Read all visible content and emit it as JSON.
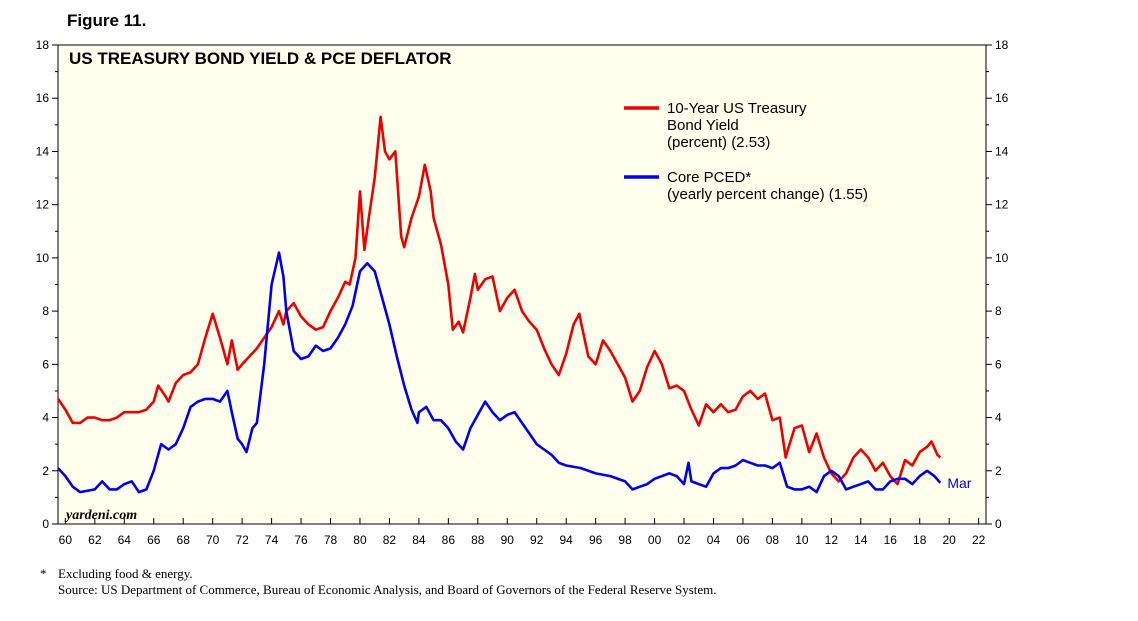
{
  "figure_label": "Figure 11.",
  "footnote": {
    "marker": "*",
    "note": "Excluding food & energy.",
    "source": "Source: US Department of Commerce, Bureau of Economic Analysis, and Board of Governors of the Federal Reserve System."
  },
  "colors": {
    "background": "#ffffee",
    "treasury": "#ee0000",
    "pced": "#0000ee",
    "text": "#000000"
  },
  "chart_data": {
    "type": "line",
    "title": "US TREASURY BOND YIELD & PCE DEFLATOR",
    "watermark": "yardeni.com",
    "ylim": [
      0,
      18
    ],
    "yticks": [
      0,
      2,
      4,
      6,
      8,
      10,
      12,
      14,
      16,
      18
    ],
    "xlim": [
      1959.5,
      2022.5
    ],
    "xtick_labels": [
      "60",
      "62",
      "64",
      "66",
      "68",
      "70",
      "72",
      "74",
      "76",
      "78",
      "80",
      "82",
      "84",
      "86",
      "88",
      "90",
      "92",
      "94",
      "96",
      "98",
      "00",
      "02",
      "04",
      "06",
      "08",
      "10",
      "12",
      "14",
      "16",
      "18",
      "20",
      "22"
    ],
    "xtick_years": [
      1960,
      1962,
      1964,
      1966,
      1968,
      1970,
      1972,
      1974,
      1976,
      1978,
      1980,
      1982,
      1984,
      1986,
      1988,
      1990,
      1992,
      1994,
      1996,
      1998,
      2000,
      2002,
      2004,
      2006,
      2008,
      2010,
      2012,
      2014,
      2016,
      2018,
      2020,
      2022
    ],
    "series": [
      {
        "name": "10-Year US Treasury Bond Yield (percent) (2.53)",
        "legend_lines": [
          "10-Year US Treasury",
          "Bond Yield",
          "(percent) (2.53)"
        ],
        "color": "#ee0000",
        "points": [
          [
            1959.5,
            4.7
          ],
          [
            1960,
            4.3
          ],
          [
            1960.5,
            3.8
          ],
          [
            1961,
            3.8
          ],
          [
            1961.5,
            4.0
          ],
          [
            1962,
            4.0
          ],
          [
            1962.5,
            3.9
          ],
          [
            1963,
            3.9
          ],
          [
            1963.5,
            4.0
          ],
          [
            1964,
            4.2
          ],
          [
            1965,
            4.2
          ],
          [
            1965.5,
            4.3
          ],
          [
            1966,
            4.6
          ],
          [
            1966.3,
            5.2
          ],
          [
            1966.8,
            4.8
          ],
          [
            1967,
            4.6
          ],
          [
            1967.5,
            5.3
          ],
          [
            1968,
            5.6
          ],
          [
            1968.5,
            5.7
          ],
          [
            1969,
            6.0
          ],
          [
            1969.5,
            7.0
          ],
          [
            1970,
            7.9
          ],
          [
            1970.5,
            7.0
          ],
          [
            1971,
            6.0
          ],
          [
            1971.3,
            6.9
          ],
          [
            1971.7,
            5.8
          ],
          [
            1972,
            6.0
          ],
          [
            1972.5,
            6.3
          ],
          [
            1973,
            6.6
          ],
          [
            1973.5,
            7.0
          ],
          [
            1974,
            7.4
          ],
          [
            1974.5,
            8.0
          ],
          [
            1974.8,
            7.5
          ],
          [
            1975,
            8.0
          ],
          [
            1975.5,
            8.3
          ],
          [
            1976,
            7.8
          ],
          [
            1976.5,
            7.5
          ],
          [
            1977,
            7.3
          ],
          [
            1977.5,
            7.4
          ],
          [
            1978,
            8.0
          ],
          [
            1978.5,
            8.5
          ],
          [
            1979,
            9.1
          ],
          [
            1979.3,
            9.0
          ],
          [
            1979.7,
            10.0
          ],
          [
            1980,
            12.5
          ],
          [
            1980.3,
            10.3
          ],
          [
            1980.6,
            11.5
          ],
          [
            1981,
            13.0
          ],
          [
            1981.4,
            15.3
          ],
          [
            1981.7,
            14.0
          ],
          [
            1982,
            13.7
          ],
          [
            1982.4,
            14.0
          ],
          [
            1982.8,
            10.8
          ],
          [
            1983,
            10.4
          ],
          [
            1983.5,
            11.5
          ],
          [
            1984,
            12.3
          ],
          [
            1984.4,
            13.5
          ],
          [
            1984.8,
            12.5
          ],
          [
            1985,
            11.5
          ],
          [
            1985.5,
            10.5
          ],
          [
            1986,
            9.0
          ],
          [
            1986.3,
            7.3
          ],
          [
            1986.7,
            7.6
          ],
          [
            1987,
            7.2
          ],
          [
            1987.5,
            8.5
          ],
          [
            1987.8,
            9.4
          ],
          [
            1988,
            8.8
          ],
          [
            1988.5,
            9.2
          ],
          [
            1989,
            9.3
          ],
          [
            1989.5,
            8.0
          ],
          [
            1990,
            8.5
          ],
          [
            1990.5,
            8.8
          ],
          [
            1991,
            8.0
          ],
          [
            1991.5,
            7.6
          ],
          [
            1992,
            7.3
          ],
          [
            1992.5,
            6.6
          ],
          [
            1993,
            6.0
          ],
          [
            1993.5,
            5.6
          ],
          [
            1994,
            6.4
          ],
          [
            1994.5,
            7.5
          ],
          [
            1994.9,
            7.9
          ],
          [
            1995,
            7.6
          ],
          [
            1995.5,
            6.3
          ],
          [
            1996,
            6.0
          ],
          [
            1996.5,
            6.9
          ],
          [
            1997,
            6.5
          ],
          [
            1997.5,
            6.0
          ],
          [
            1998,
            5.5
          ],
          [
            1998.5,
            4.6
          ],
          [
            1999,
            5.0
          ],
          [
            1999.5,
            5.9
          ],
          [
            2000,
            6.5
          ],
          [
            2000.5,
            6.0
          ],
          [
            2001,
            5.1
          ],
          [
            2001.5,
            5.2
          ],
          [
            2002,
            5.0
          ],
          [
            2002.5,
            4.3
          ],
          [
            2003,
            3.7
          ],
          [
            2003.5,
            4.5
          ],
          [
            2004,
            4.2
          ],
          [
            2004.5,
            4.5
          ],
          [
            2005,
            4.2
          ],
          [
            2005.5,
            4.3
          ],
          [
            2006,
            4.8
          ],
          [
            2006.5,
            5.0
          ],
          [
            2007,
            4.7
          ],
          [
            2007.5,
            4.9
          ],
          [
            2008,
            3.9
          ],
          [
            2008.5,
            4.0
          ],
          [
            2008.9,
            2.5
          ],
          [
            2009,
            2.7
          ],
          [
            2009.5,
            3.6
          ],
          [
            2010,
            3.7
          ],
          [
            2010.5,
            2.7
          ],
          [
            2011,
            3.4
          ],
          [
            2011.5,
            2.5
          ],
          [
            2012,
            1.9
          ],
          [
            2012.5,
            1.6
          ],
          [
            2013,
            1.9
          ],
          [
            2013.5,
            2.5
          ],
          [
            2014,
            2.8
          ],
          [
            2014.5,
            2.5
          ],
          [
            2015,
            2.0
          ],
          [
            2015.5,
            2.3
          ],
          [
            2016,
            1.8
          ],
          [
            2016.5,
            1.5
          ],
          [
            2017,
            2.4
          ],
          [
            2017.5,
            2.2
          ],
          [
            2018,
            2.7
          ],
          [
            2018.5,
            2.9
          ],
          [
            2018.8,
            3.1
          ],
          [
            2019.2,
            2.6
          ],
          [
            2019.4,
            2.5
          ]
        ]
      },
      {
        "name": "Core PCED* (yearly percent change) (1.55)",
        "legend_lines": [
          "Core PCED*",
          "(yearly percent change) (1.55)"
        ],
        "end_label": "Mar",
        "color": "#0000ee",
        "points": [
          [
            1959.5,
            2.1
          ],
          [
            1960,
            1.8
          ],
          [
            1960.5,
            1.4
          ],
          [
            1961,
            1.2
          ],
          [
            1962,
            1.3
          ],
          [
            1962.5,
            1.6
          ],
          [
            1963,
            1.3
          ],
          [
            1963.5,
            1.3
          ],
          [
            1964,
            1.5
          ],
          [
            1964.5,
            1.6
          ],
          [
            1965,
            1.2
          ],
          [
            1965.5,
            1.3
          ],
          [
            1966,
            2.0
          ],
          [
            1966.5,
            3.0
          ],
          [
            1967,
            2.8
          ],
          [
            1967.5,
            3.0
          ],
          [
            1968,
            3.6
          ],
          [
            1968.5,
            4.4
          ],
          [
            1969,
            4.6
          ],
          [
            1969.5,
            4.7
          ],
          [
            1970,
            4.7
          ],
          [
            1970.5,
            4.6
          ],
          [
            1971,
            5.0
          ],
          [
            1971.3,
            4.2
          ],
          [
            1971.7,
            3.2
          ],
          [
            1972,
            3.0
          ],
          [
            1972.3,
            2.7
          ],
          [
            1972.7,
            3.6
          ],
          [
            1973,
            3.8
          ],
          [
            1973.5,
            6.0
          ],
          [
            1974,
            9.0
          ],
          [
            1974.5,
            10.2
          ],
          [
            1974.8,
            9.3
          ],
          [
            1975,
            8.0
          ],
          [
            1975.5,
            6.5
          ],
          [
            1976,
            6.2
          ],
          [
            1976.5,
            6.3
          ],
          [
            1977,
            6.7
          ],
          [
            1977.5,
            6.5
          ],
          [
            1978,
            6.6
          ],
          [
            1978.5,
            7.0
          ],
          [
            1979,
            7.5
          ],
          [
            1979.5,
            8.2
          ],
          [
            1980,
            9.5
          ],
          [
            1980.5,
            9.8
          ],
          [
            1981,
            9.5
          ],
          [
            1981.5,
            8.5
          ],
          [
            1982,
            7.5
          ],
          [
            1982.5,
            6.3
          ],
          [
            1983,
            5.2
          ],
          [
            1983.5,
            4.3
          ],
          [
            1983.9,
            3.8
          ],
          [
            1984,
            4.2
          ],
          [
            1984.5,
            4.4
          ],
          [
            1985,
            3.9
          ],
          [
            1985.5,
            3.9
          ],
          [
            1986,
            3.6
          ],
          [
            1986.5,
            3.1
          ],
          [
            1987,
            2.8
          ],
          [
            1987.5,
            3.6
          ],
          [
            1988,
            4.1
          ],
          [
            1988.5,
            4.6
          ],
          [
            1989,
            4.2
          ],
          [
            1989.5,
            3.9
          ],
          [
            1990,
            4.1
          ],
          [
            1990.5,
            4.2
          ],
          [
            1991,
            3.8
          ],
          [
            1991.5,
            3.4
          ],
          [
            1992,
            3.0
          ],
          [
            1992.5,
            2.8
          ],
          [
            1993,
            2.6
          ],
          [
            1993.5,
            2.3
          ],
          [
            1994,
            2.2
          ],
          [
            1995,
            2.1
          ],
          [
            1996,
            1.9
          ],
          [
            1997,
            1.8
          ],
          [
            1998,
            1.6
          ],
          [
            1998.5,
            1.3
          ],
          [
            1999,
            1.4
          ],
          [
            1999.5,
            1.5
          ],
          [
            2000,
            1.7
          ],
          [
            2000.5,
            1.8
          ],
          [
            2001,
            1.9
          ],
          [
            2001.5,
            1.8
          ],
          [
            2002,
            1.5
          ],
          [
            2002.3,
            2.3
          ],
          [
            2002.5,
            1.6
          ],
          [
            2003,
            1.5
          ],
          [
            2003.5,
            1.4
          ],
          [
            2004,
            1.9
          ],
          [
            2004.5,
            2.1
          ],
          [
            2005,
            2.1
          ],
          [
            2005.5,
            2.2
          ],
          [
            2006,
            2.4
          ],
          [
            2006.5,
            2.3
          ],
          [
            2007,
            2.2
          ],
          [
            2007.5,
            2.2
          ],
          [
            2008,
            2.1
          ],
          [
            2008.5,
            2.3
          ],
          [
            2009,
            1.4
          ],
          [
            2009.5,
            1.3
          ],
          [
            2010,
            1.3
          ],
          [
            2010.5,
            1.4
          ],
          [
            2011,
            1.2
          ],
          [
            2011.5,
            1.8
          ],
          [
            2012,
            2.0
          ],
          [
            2012.5,
            1.8
          ],
          [
            2013,
            1.3
          ],
          [
            2013.5,
            1.4
          ],
          [
            2014,
            1.5
          ],
          [
            2014.5,
            1.6
          ],
          [
            2015,
            1.3
          ],
          [
            2015.5,
            1.3
          ],
          [
            2016,
            1.6
          ],
          [
            2016.5,
            1.7
          ],
          [
            2017,
            1.7
          ],
          [
            2017.5,
            1.5
          ],
          [
            2018,
            1.8
          ],
          [
            2018.5,
            2.0
          ],
          [
            2019,
            1.8
          ],
          [
            2019.4,
            1.55
          ]
        ]
      }
    ]
  }
}
